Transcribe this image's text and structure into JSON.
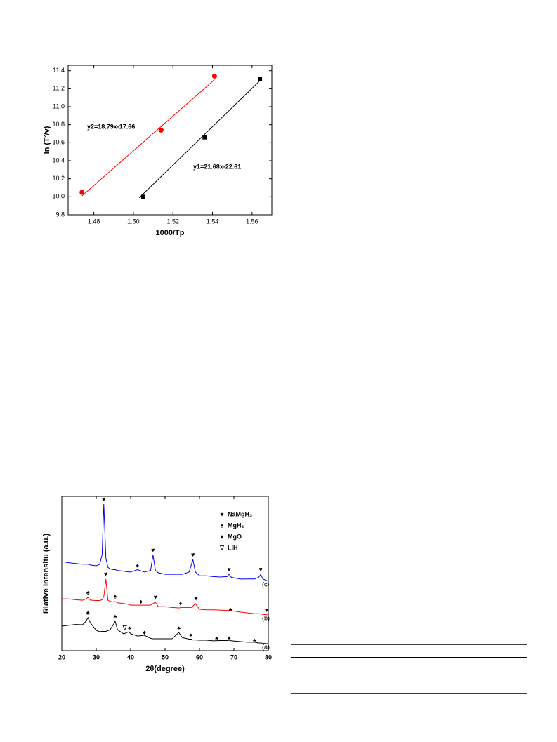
{
  "chart_data": [
    {
      "type": "scatter",
      "x_label": "1000/Tp",
      "y_label": "ln (T²/v)",
      "xlim": [
        1.467,
        1.57
      ],
      "xticks": [
        1.48,
        {
          "value": 1.5,
          "label": "1.50"
        },
        1.52,
        1.54,
        1.56
      ],
      "ylim": [
        9.8,
        11.46
      ],
      "yticks": [
        9.8,
        {
          "value": 10,
          "label": "10.0"
        },
        10.2,
        10.4,
        10.6,
        10.8,
        {
          "value": 11,
          "label": "11.0"
        },
        11.2,
        11.4
      ],
      "annotations": [
        "y2=18.79x-17.66",
        "y1=21.68x-22.61"
      ],
      "series": [
        {
          "color": "#ff0000",
          "marker": "circle",
          "x": [
            1.474,
            1.514,
            1.541
          ],
          "values": [
            10.05,
            10.74,
            11.34
          ],
          "fit": {
            "x": [
              1.474,
              1.541
            ],
            "y": [
              10.01,
              11.3
            ]
          }
        },
        {
          "color": "#000000",
          "marker": "square",
          "x": [
            1.505,
            1.536,
            1.564
          ],
          "values": [
            10.0,
            10.66,
            11.31
          ],
          "fit": {
            "x": [
              1.503,
              1.564
            ],
            "y": [
              9.99,
              11.29
            ]
          }
        }
      ]
    },
    {
      "type": "line",
      "x_label": "2θ(degree)",
      "y_label": "Rlative Intensitu (a.u.)",
      "xlim": [
        20,
        80
      ],
      "xticks": [
        20,
        30,
        40,
        50,
        60,
        70,
        80
      ],
      "ylim": [
        0,
        100
      ],
      "x": [
        20,
        22,
        24,
        26,
        27,
        27.6,
        28.3,
        30,
        31,
        31.7,
        32.2,
        32.8,
        33.4,
        34,
        35,
        35.5,
        36.2,
        38,
        39.5,
        40,
        42,
        44,
        45.8,
        46.5,
        47.2,
        48,
        50,
        52,
        54,
        55,
        57,
        57.6,
        58.1,
        58.8,
        60,
        62,
        64,
        66,
        68,
        68.6,
        69.3,
        72,
        74,
        76,
        77.2,
        77.8,
        78.4,
        80
      ],
      "series": [
        {
          "name": "(a)",
          "color": "#000000",
          "values": [
            15.9,
            16.5,
            17,
            16.8,
            19,
            21.4,
            18,
            13.2,
            12.3,
            12.5,
            12.5,
            12.5,
            13,
            13.5,
            17,
            19.1,
            13.5,
            10.9,
            12.3,
            11,
            9.5,
            10,
            8,
            7.7,
            7.7,
            7.7,
            7.7,
            7.7,
            11.8,
            8.5,
            7.5,
            7.5,
            7,
            7,
            6.8,
            6.8,
            6.4,
            6.6,
            6.6,
            6.8,
            6.4,
            5.9,
            5.5,
            5.5,
            5,
            5,
            4.8,
            4.5
          ]
        },
        {
          "name": "(b)",
          "color": "#ff0000",
          "values": [
            33.6,
            33.5,
            33,
            32.7,
            33.5,
            34.5,
            32.7,
            32.5,
            32.5,
            33,
            35,
            46.4,
            32.7,
            32,
            31.5,
            31.8,
            31,
            30.5,
            30,
            29.5,
            29.5,
            29.5,
            29.5,
            30.5,
            31.4,
            28.6,
            28.5,
            28,
            27.7,
            28,
            28,
            28,
            29,
            30.5,
            26.8,
            26.5,
            26.5,
            26.3,
            26,
            26.2,
            25.9,
            25,
            24.5,
            24,
            24,
            23.8,
            23.5,
            23.2
          ]
        },
        {
          "name": "(c)",
          "color": "#0000ff",
          "values": [
            57.7,
            57,
            56.5,
            56,
            56,
            56,
            55.5,
            55,
            56,
            62,
            95,
            60,
            54,
            53,
            52.5,
            52.5,
            52,
            51.5,
            51,
            51,
            52.5,
            51,
            52,
            62,
            52,
            50.5,
            49.5,
            49.5,
            49.5,
            49.5,
            51,
            55.5,
            59,
            51,
            48.6,
            48.5,
            48,
            47.7,
            48,
            49.5,
            47.5,
            46.4,
            46.5,
            46.5,
            47.5,
            49.5,
            46.5,
            45
          ]
        }
      ],
      "peak_markers": [
        {
          "x": 32.2,
          "y": 98,
          "symbol": "♥"
        },
        {
          "x": 42,
          "y": 55,
          "symbol": "♦"
        },
        {
          "x": 46.5,
          "y": 65,
          "symbol": "♥"
        },
        {
          "x": 58.1,
          "y": 62,
          "symbol": "♥"
        },
        {
          "x": 68.6,
          "y": 52.5,
          "symbol": "♥"
        },
        {
          "x": 77.8,
          "y": 52.5,
          "symbol": "♥"
        },
        {
          "x": 27.6,
          "y": 37.5,
          "symbol": "♠"
        },
        {
          "x": 32.8,
          "y": 49.5,
          "symbol": "♥"
        },
        {
          "x": 35.5,
          "y": 35,
          "symbol": "♠"
        },
        {
          "x": 43,
          "y": 31.5,
          "symbol": "♦"
        },
        {
          "x": 47.2,
          "y": 34.5,
          "symbol": "♥"
        },
        {
          "x": 54.5,
          "y": 30.5,
          "symbol": "♦"
        },
        {
          "x": 59,
          "y": 33.5,
          "symbol": "♥"
        },
        {
          "x": 69,
          "y": 26.5,
          "symbol": "♠"
        },
        {
          "x": 79.5,
          "y": 26,
          "symbol": "♥"
        },
        {
          "x": 27.6,
          "y": 24.5,
          "symbol": "♠"
        },
        {
          "x": 35.5,
          "y": 22,
          "symbol": "♠"
        },
        {
          "x": 38.3,
          "y": 14.5,
          "symbol": "∇"
        },
        {
          "x": 39.7,
          "y": 14.5,
          "symbol": "♠"
        },
        {
          "x": 44,
          "y": 11.5,
          "symbol": "♦"
        },
        {
          "x": 54,
          "y": 14.5,
          "symbol": "♠"
        },
        {
          "x": 57.5,
          "y": 10,
          "symbol": "♠"
        },
        {
          "x": 65,
          "y": 8,
          "symbol": "♠"
        },
        {
          "x": 68.6,
          "y": 8,
          "symbol": "♠"
        },
        {
          "x": 76,
          "y": 6.5,
          "symbol": "♠"
        }
      ],
      "peak_legend": [
        {
          "symbol": "♥",
          "label": "NaMgH₃"
        },
        {
          "symbol": "♠",
          "label": "MgH₂"
        },
        {
          "symbol": "♦",
          "label": "MgO"
        },
        {
          "symbol": "∇",
          "label": "LiH"
        }
      ]
    }
  ]
}
